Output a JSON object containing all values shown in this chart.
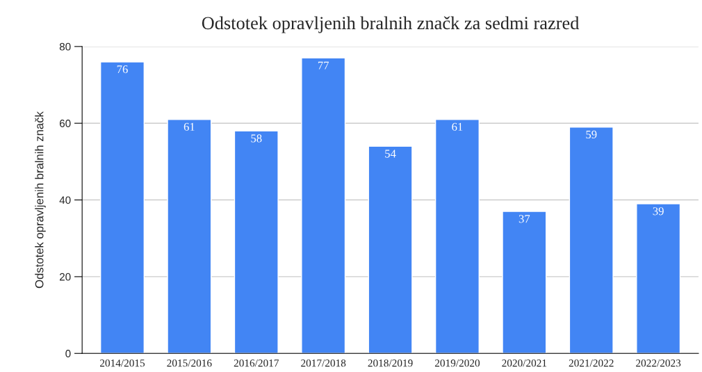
{
  "chart_data": {
    "type": "bar",
    "title": "Odstotek opravljenih bralnih značk za sedmi razred",
    "ylabel": "Odstotek opravljenih bralnih značk",
    "categories": [
      "2014/2015",
      "2015/2016",
      "2016/2017",
      "2017/2018",
      "2018/2019",
      "2019/2020",
      "2020/2021",
      "2021/2022",
      "2022/2023"
    ],
    "values": [
      76,
      61,
      58,
      77,
      54,
      61,
      37,
      59,
      39
    ],
    "color": "#4285f4",
    "ylim": [
      0,
      80
    ],
    "yticks": [
      0,
      20,
      40,
      60,
      80
    ],
    "grid": "y",
    "data_labels": true
  }
}
